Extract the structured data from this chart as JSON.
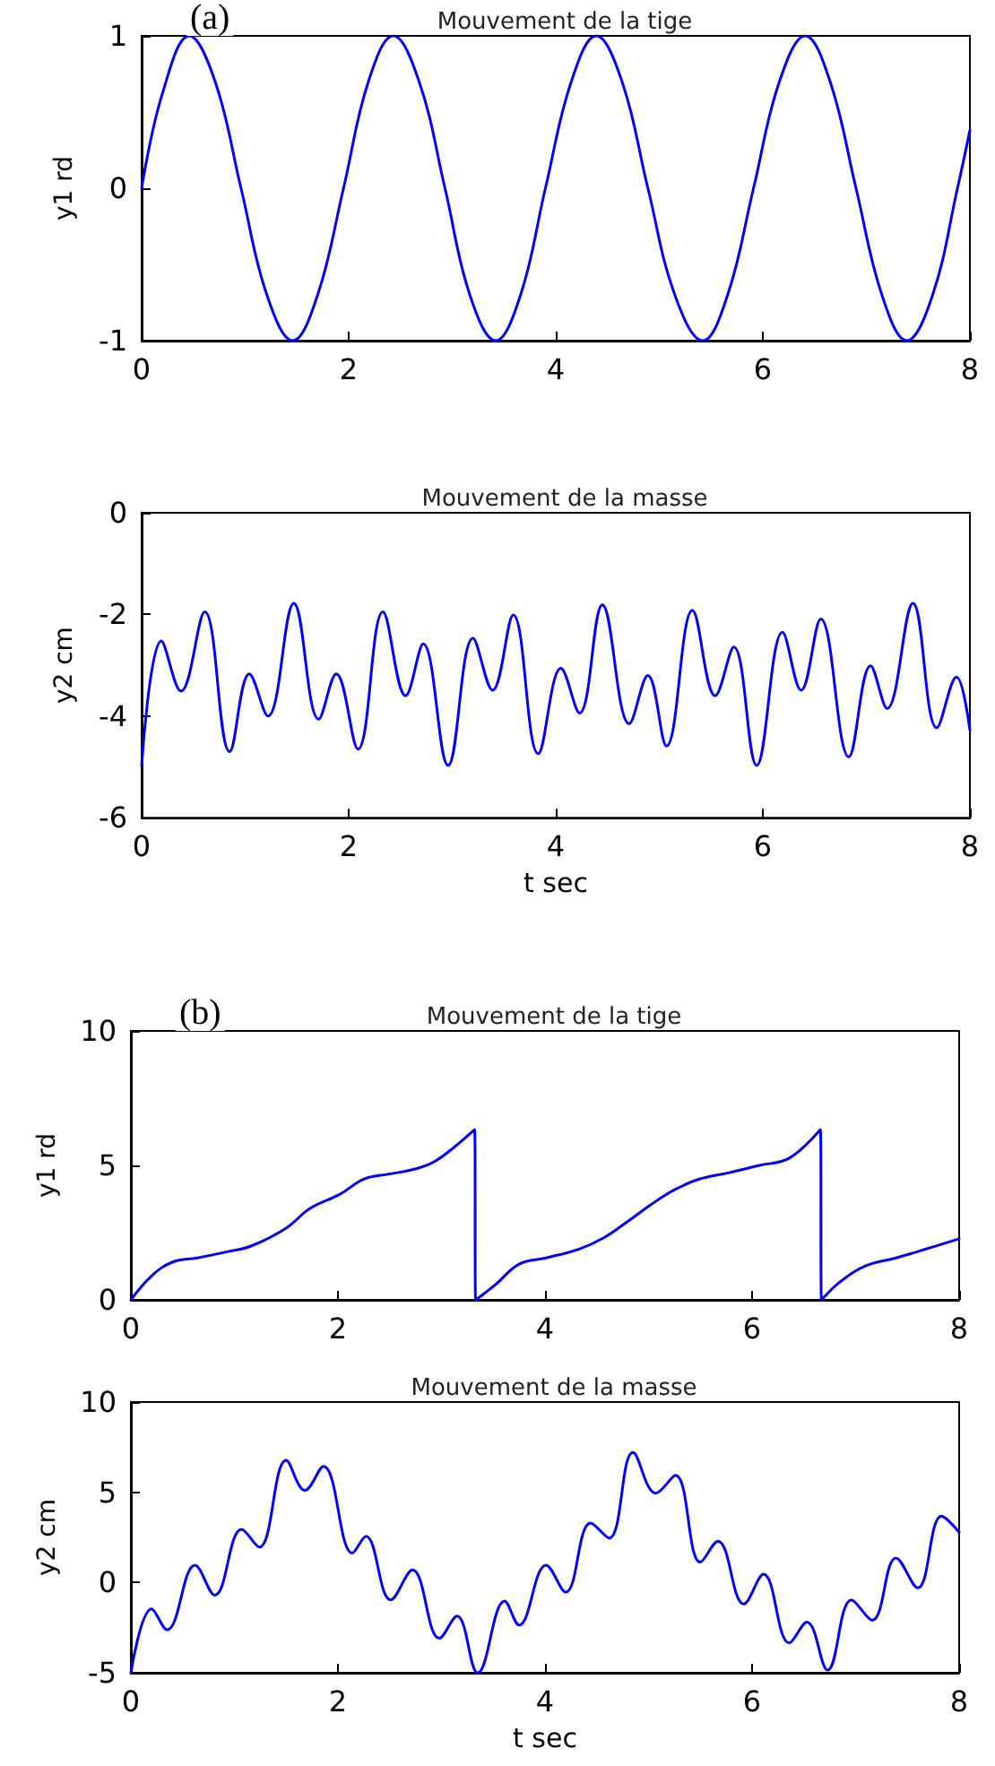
{
  "chart_data": [
    {
      "type": "line",
      "title": "Mouvement de la tige",
      "ylabel": "y1 rd",
      "annotations": [
        "(a)"
      ],
      "color": "#0000ff",
      "marker": "none",
      "grid": false,
      "xlim": [
        0,
        8
      ],
      "ylim": [
        -1,
        1
      ],
      "xticks": [
        0,
        2,
        4,
        6,
        8
      ],
      "yticks": [
        -1,
        0,
        1
      ],
      "x": [
        0,
        0.2,
        0.46,
        0.71,
        0.96,
        1.21,
        1.46,
        1.7,
        1.95,
        2.19,
        2.43,
        2.68,
        2.93,
        3.17,
        3.42,
        3.66,
        3.9,
        4.15,
        4.39,
        4.64,
        4.89,
        5.15,
        5.42,
        5.66,
        5.91,
        6.16,
        6.41,
        6.65,
        6.9,
        7.15,
        7.39,
        7.64,
        7.88,
        8
      ],
      "values": [
        0,
        0.62,
        1,
        0.7,
        0,
        -0.7,
        -1,
        -0.7,
        0,
        0.7,
        1,
        0.7,
        0,
        -0.7,
        -1,
        -0.7,
        0,
        0.7,
        1,
        0.7,
        0,
        -0.7,
        -1,
        -0.7,
        0,
        0.7,
        1,
        0.7,
        0,
        -0.7,
        -1,
        -0.7,
        0,
        0.38
      ]
    },
    {
      "type": "line",
      "title": "Mouvement de la masse",
      "xlabel": "t sec",
      "ylabel": "y2 cm",
      "color": "#0000ff",
      "marker": "none",
      "grid": false,
      "xlim": [
        0,
        8
      ],
      "ylim": [
        -6,
        0
      ],
      "xticks": [
        0,
        2,
        4,
        6,
        8
      ],
      "yticks": [
        -6,
        -4,
        -2,
        0
      ],
      "x": [
        0,
        0.19,
        0.38,
        0.61,
        0.85,
        1.04,
        1.22,
        1.47,
        1.71,
        1.88,
        2.09,
        2.33,
        2.55,
        2.72,
        2.96,
        3.2,
        3.39,
        3.59,
        3.83,
        4.05,
        4.23,
        4.45,
        4.71,
        4.89,
        5.07,
        5.32,
        5.54,
        5.72,
        5.94,
        6.19,
        6.37,
        6.56,
        6.83,
        7.04,
        7.2,
        7.45,
        7.68,
        7.87,
        8
      ],
      "values": [
        -4.97,
        -2.52,
        -3.51,
        -1.95,
        -4.7,
        -3.17,
        -4.0,
        -1.78,
        -4.06,
        -3.17,
        -4.65,
        -1.95,
        -3.6,
        -2.58,
        -4.97,
        -2.47,
        -3.49,
        -2.01,
        -4.74,
        -3.06,
        -3.94,
        -1.81,
        -4.15,
        -3.2,
        -4.59,
        -1.92,
        -3.6,
        -2.64,
        -4.97,
        -2.35,
        -3.49,
        -2.09,
        -4.8,
        -3.01,
        -3.85,
        -1.78,
        -4.23,
        -3.23,
        -4.28
      ]
    },
    {
      "type": "line",
      "title": "Mouvement de la tige",
      "ylabel": "y1 rd",
      "annotations": [
        "(b)"
      ],
      "color": "#0000ff",
      "marker": "none",
      "grid": false,
      "xlim": [
        0,
        8
      ],
      "ylim": [
        0,
        10
      ],
      "xticks": [
        0,
        2,
        4,
        6,
        8
      ],
      "yticks": [
        0,
        5,
        10
      ],
      "x": [
        0,
        0.2,
        0.4,
        0.64,
        0.92,
        1.16,
        1.5,
        1.73,
        2.02,
        2.25,
        2.48,
        2.72,
        2.95,
        3.32,
        3.33,
        3.52,
        3.75,
        4.01,
        4.33,
        4.56,
        4.79,
        5.03,
        5.26,
        5.49,
        5.78,
        6.07,
        6.36,
        6.66,
        6.67,
        6.85,
        7.1,
        7.39,
        7.68,
        8
      ],
      "values": [
        0,
        0.89,
        1.4,
        1.56,
        1.78,
        2.0,
        2.67,
        3.4,
        3.93,
        4.49,
        4.67,
        4.84,
        5.18,
        6.33,
        0,
        0.56,
        1.33,
        1.56,
        1.89,
        2.29,
        2.89,
        3.56,
        4.11,
        4.49,
        4.73,
        5.0,
        5.27,
        6.33,
        0,
        0.67,
        1.27,
        1.56,
        1.89,
        2.27
      ]
    },
    {
      "type": "line",
      "title": "Mouvement de la masse",
      "xlabel": "t sec",
      "ylabel": "y2 cm",
      "color": "#0000ff",
      "marker": "none",
      "grid": false,
      "xlim": [
        0,
        8
      ],
      "ylim": [
        -5,
        10
      ],
      "xticks": [
        0,
        2,
        4,
        6,
        8
      ],
      "yticks": [
        -5,
        0,
        5,
        10
      ],
      "x": [
        0,
        0.2,
        0.35,
        0.62,
        0.81,
        1.07,
        1.24,
        1.5,
        1.68,
        1.86,
        2.14,
        2.27,
        2.51,
        2.72,
        2.98,
        3.15,
        3.35,
        3.61,
        3.75,
        4.01,
        4.2,
        4.44,
        4.62,
        4.85,
        5.07,
        5.26,
        5.5,
        5.67,
        5.92,
        6.11,
        6.36,
        6.53,
        6.73,
        6.96,
        7.16,
        7.39,
        7.6,
        7.83,
        8
      ],
      "values": [
        -5.0,
        -1.46,
        -2.62,
        0.96,
        -0.7,
        2.95,
        1.96,
        6.77,
        5.11,
        6.44,
        1.63,
        2.56,
        -0.96,
        0.7,
        -3.09,
        -1.86,
        -5.0,
        -1.03,
        -2.36,
        0.96,
        -0.53,
        3.29,
        2.46,
        7.2,
        4.95,
        5.94,
        1.13,
        2.29,
        -1.19,
        0.46,
        -3.35,
        -2.19,
        -4.85,
        -0.96,
        -2.09,
        1.36,
        -0.3,
        3.68,
        2.79
      ]
    }
  ]
}
